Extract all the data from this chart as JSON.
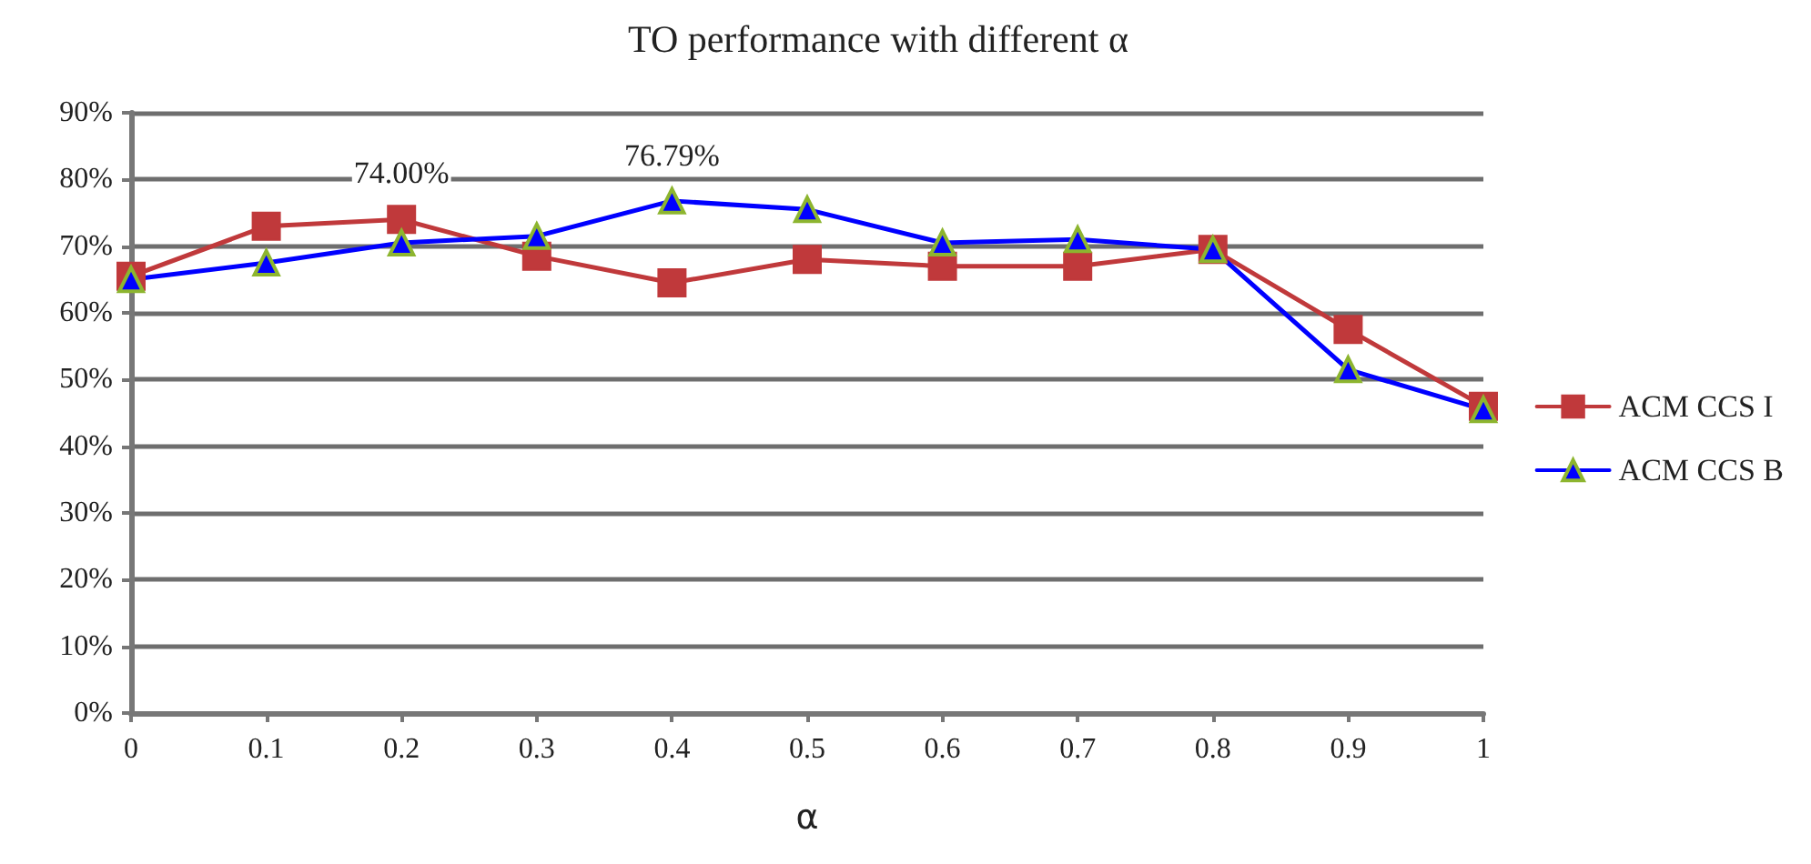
{
  "chart_data": {
    "type": "line",
    "title": "TO performance with different α",
    "xlabel": "α",
    "categories": [
      "0",
      "0.1",
      "0.2",
      "0.3",
      "0.4",
      "0.5",
      "0.6",
      "0.7",
      "0.8",
      "0.9",
      "1"
    ],
    "series": [
      {
        "name": "ACM CCS I",
        "color": "#c0393b",
        "marker": "square",
        "values": [
          65.5,
          73,
          74.0,
          68.5,
          64.5,
          68,
          67,
          67,
          69.5,
          57.5,
          46
        ],
        "value_labels": [
          null,
          null,
          "74.00%",
          null,
          null,
          null,
          null,
          null,
          null,
          null,
          null
        ]
      },
      {
        "name": "ACM CCS B",
        "color": "#0000ff",
        "marker": "triangle",
        "values": [
          65,
          67.5,
          70.5,
          71.5,
          76.79,
          75.5,
          70.5,
          71,
          69.5,
          51.5,
          45.5
        ],
        "value_labels": [
          null,
          null,
          null,
          null,
          "76.79%",
          null,
          null,
          null,
          null,
          null,
          null
        ]
      }
    ],
    "ylim": [
      0,
      90
    ],
    "yticks": [
      {
        "value": 0,
        "label": "0%"
      },
      {
        "value": 10,
        "label": "10%"
      },
      {
        "value": 20,
        "label": "20%"
      },
      {
        "value": 30,
        "label": "30%"
      },
      {
        "value": 40,
        "label": "40%"
      },
      {
        "value": 50,
        "label": "50%"
      },
      {
        "value": 60,
        "label": "60%"
      },
      {
        "value": 70,
        "label": "70%"
      },
      {
        "value": 80,
        "label": "80%"
      },
      {
        "value": 90,
        "label": "90%"
      }
    ],
    "grid": "y",
    "legend": "right"
  }
}
